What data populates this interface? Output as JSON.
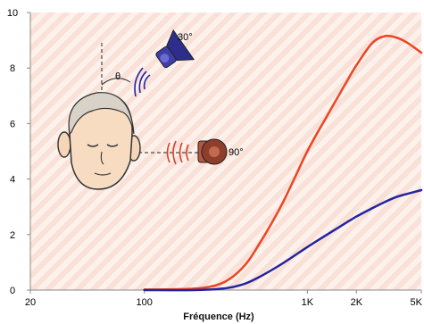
{
  "chart_data": {
    "type": "line",
    "xlabel": "Fréquence (Hz)",
    "ylabel": "",
    "x_scale": "log",
    "xlim": [
      20,
      5000
    ],
    "ylim": [
      0,
      10
    ],
    "x_ticks": [
      20,
      100,
      1000,
      2000,
      5000
    ],
    "x_tick_labels": [
      "20",
      "100",
      "1K",
      "2K",
      "5K"
    ],
    "y_ticks": [
      0,
      2,
      4,
      6,
      8,
      10
    ],
    "y_tick_labels": [
      "0",
      "2",
      "4",
      "6",
      "8",
      "10"
    ],
    "grid": false,
    "colors": {
      "angle_30": "#2323a0",
      "angle_90": "#ee4422",
      "background": "#fbe9e2",
      "axis": "#888888"
    },
    "series": [
      {
        "name": "",
        "color": "#ee4422",
        "x": [
          100,
          200,
          300,
          400,
          500,
          700,
          1000,
          1300,
          1700,
          2000,
          2500,
          3000,
          3500,
          4000,
          4500,
          5000
        ],
        "y": [
          0.02,
          0.05,
          0.25,
          0.8,
          1.6,
          3.1,
          5.0,
          6.2,
          7.4,
          8.1,
          8.9,
          9.15,
          9.1,
          8.95,
          8.75,
          8.55
        ]
      },
      {
        "name": "",
        "color": "#2323a0",
        "x": [
          100,
          200,
          300,
          400,
          500,
          700,
          1000,
          1500,
          2000,
          2500,
          3000,
          3500,
          4000,
          5000
        ],
        "y": [
          0.0,
          0.0,
          0.05,
          0.2,
          0.45,
          0.95,
          1.55,
          2.2,
          2.65,
          2.95,
          3.18,
          3.35,
          3.45,
          3.6
        ]
      }
    ],
    "annotations": [
      {
        "label": "30°",
        "icon": "speaker-icon",
        "color": "#2323a0"
      },
      {
        "label": "90°",
        "icon": "speaker-icon",
        "color": "#9a3d2a"
      },
      {
        "label": "θ",
        "icon": "angle-symbol"
      }
    ]
  }
}
